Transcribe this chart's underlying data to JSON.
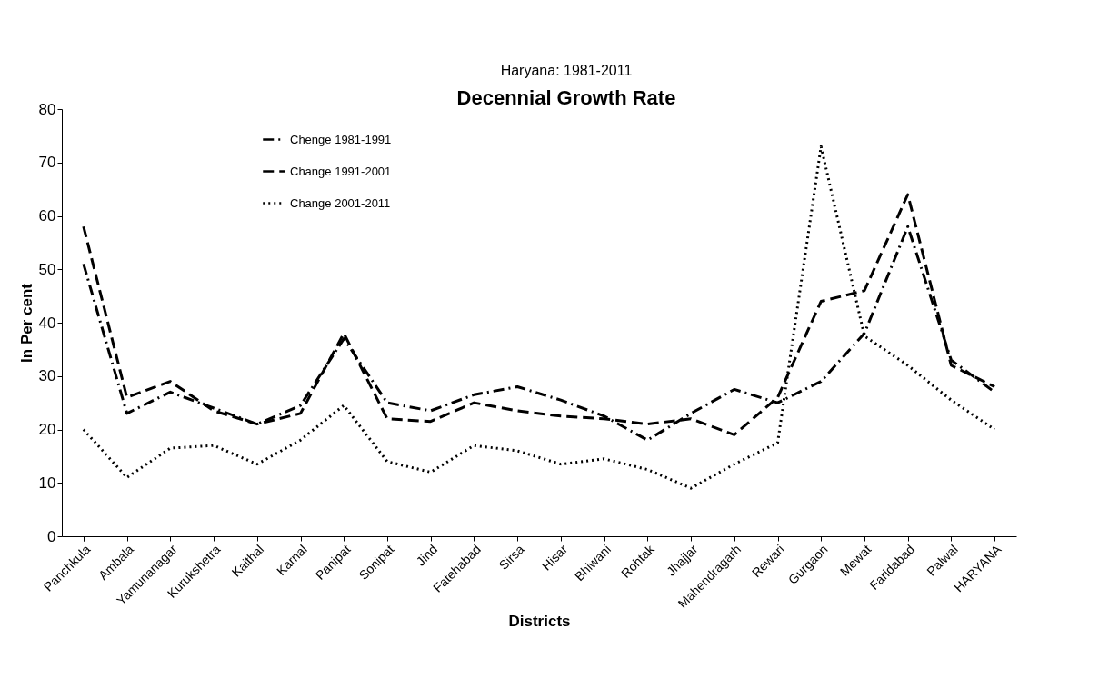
{
  "chart_data": {
    "type": "line",
    "title": "Decennial Growth Rate",
    "subtitle": "Haryana: 1981-2011",
    "xlabel": "Districts",
    "ylabel": "In Per cent",
    "categories": [
      "Panchkula",
      "Ambala",
      "Yamunanagar",
      "Kurukshetra",
      "Kaithal",
      "Karnal",
      "Panipat",
      "Sonipat",
      "Jind",
      "Fatehabad",
      "Sirsa",
      "Hisar",
      "Bhiwani",
      "Rohtak",
      "Jhajjar",
      "Mahendragarh",
      "Rewari",
      "Gurgaon",
      "Mewat",
      "Faridabad",
      "Palwal",
      "HARYANA"
    ],
    "series": [
      {
        "name": "Chenge 1981-1991",
        "color": "#000000",
        "line_style": "dashdot",
        "values": [
          51,
          23,
          27,
          24,
          21,
          24.5,
          37,
          25,
          23.5,
          26.5,
          28,
          25.5,
          22.5,
          18,
          23,
          27.5,
          25,
          29,
          38,
          58,
          33,
          27
        ]
      },
      {
        "name": "Change 1991-2001",
        "color": "#000000",
        "line_style": "dashed",
        "values": [
          58,
          26,
          29,
          23.5,
          21,
          23,
          38,
          22,
          21.5,
          25,
          23.5,
          22.5,
          22,
          21,
          22,
          19,
          26,
          44,
          46,
          64,
          32,
          28
        ]
      },
      {
        "name": "Change 2001-2011",
        "color": "#000000",
        "line_style": "dotted",
        "values": [
          20,
          11,
          16.5,
          17,
          13.5,
          18,
          24.5,
          14,
          12,
          17,
          16,
          13.5,
          14.5,
          12.5,
          9,
          13.5,
          17.5,
          73,
          37.5,
          32,
          25.5,
          20
        ]
      }
    ],
    "ylim": [
      0,
      80
    ],
    "yticks": [
      0,
      10,
      20,
      30,
      40,
      50,
      60,
      70,
      80
    ],
    "grid": false,
    "legend": "top left",
    "marker": "none"
  }
}
